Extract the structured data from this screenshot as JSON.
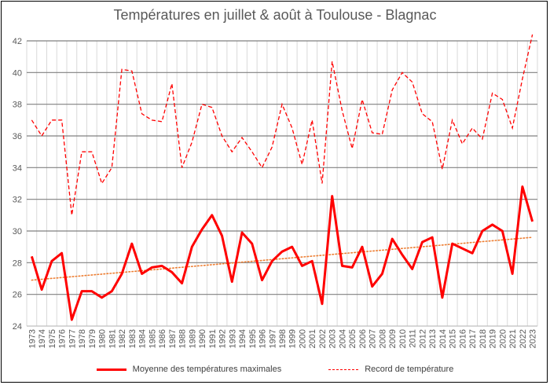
{
  "chart_data": {
    "type": "line",
    "title": "Températures en juillet & août à Toulouse - Blagnac",
    "xlabel": "",
    "ylabel": "",
    "ylim": [
      24,
      42
    ],
    "yticks": [
      24,
      26,
      28,
      30,
      32,
      34,
      36,
      38,
      40,
      42
    ],
    "grid": true,
    "legend_position": "bottom",
    "x": [
      1973,
      1974,
      1975,
      1976,
      1977,
      1978,
      1979,
      1980,
      1981,
      1982,
      1983,
      1984,
      1985,
      1986,
      1987,
      1988,
      1989,
      1990,
      1991,
      1992,
      1993,
      1994,
      1995,
      1996,
      1997,
      1998,
      1999,
      2000,
      2001,
      2002,
      2003,
      2004,
      2005,
      2006,
      2007,
      2008,
      2009,
      2010,
      2011,
      2012,
      2013,
      2014,
      2015,
      2016,
      2017,
      2018,
      2019,
      2020,
      2021,
      2022,
      2023
    ],
    "series": [
      {
        "name": "Moyenne des températures maximales",
        "style": "solid",
        "color": "#ff0000",
        "values": [
          28.4,
          26.3,
          28.1,
          28.6,
          24.4,
          26.2,
          26.2,
          25.8,
          26.2,
          27.3,
          29.2,
          27.3,
          27.7,
          27.8,
          27.4,
          26.7,
          29.0,
          30.1,
          31.0,
          29.7,
          26.8,
          29.9,
          29.2,
          26.9,
          28.1,
          28.7,
          29.0,
          27.8,
          28.1,
          25.4,
          32.2,
          27.8,
          27.7,
          29.0,
          26.5,
          27.3,
          29.5,
          28.5,
          27.6,
          29.3,
          29.6,
          25.8,
          29.2,
          28.9,
          28.6,
          30.0,
          30.4,
          30.0,
          27.3,
          32.8,
          30.6
        ]
      },
      {
        "name": "Record de température",
        "style": "dashed",
        "color": "#ff0000",
        "values": [
          37.0,
          36.0,
          37.0,
          37.0,
          31.0,
          35.0,
          35.0,
          33.0,
          34.0,
          40.2,
          40.1,
          37.4,
          37.0,
          36.9,
          39.3,
          34.0,
          35.6,
          38.0,
          37.8,
          36.0,
          35.0,
          35.9,
          35.0,
          34.0,
          35.3,
          38.0,
          36.5,
          34.2,
          37.0,
          33.0,
          40.7,
          37.6,
          35.2,
          38.3,
          36.2,
          36.1,
          38.9,
          40.0,
          39.4,
          37.4,
          36.9,
          33.9,
          37.0,
          35.5,
          36.5,
          35.8,
          38.7,
          38.3,
          36.5,
          39.6,
          42.4
        ]
      },
      {
        "name": "",
        "style": "dotted",
        "color": "#ed7d31",
        "trendline_of": "Moyenne des températures maximales",
        "values_endpoints": [
          26.9,
          29.6
        ]
      }
    ]
  },
  "legend": {
    "solid_label": "Moyenne des températures maximales",
    "dashed_label": "Record de température"
  }
}
